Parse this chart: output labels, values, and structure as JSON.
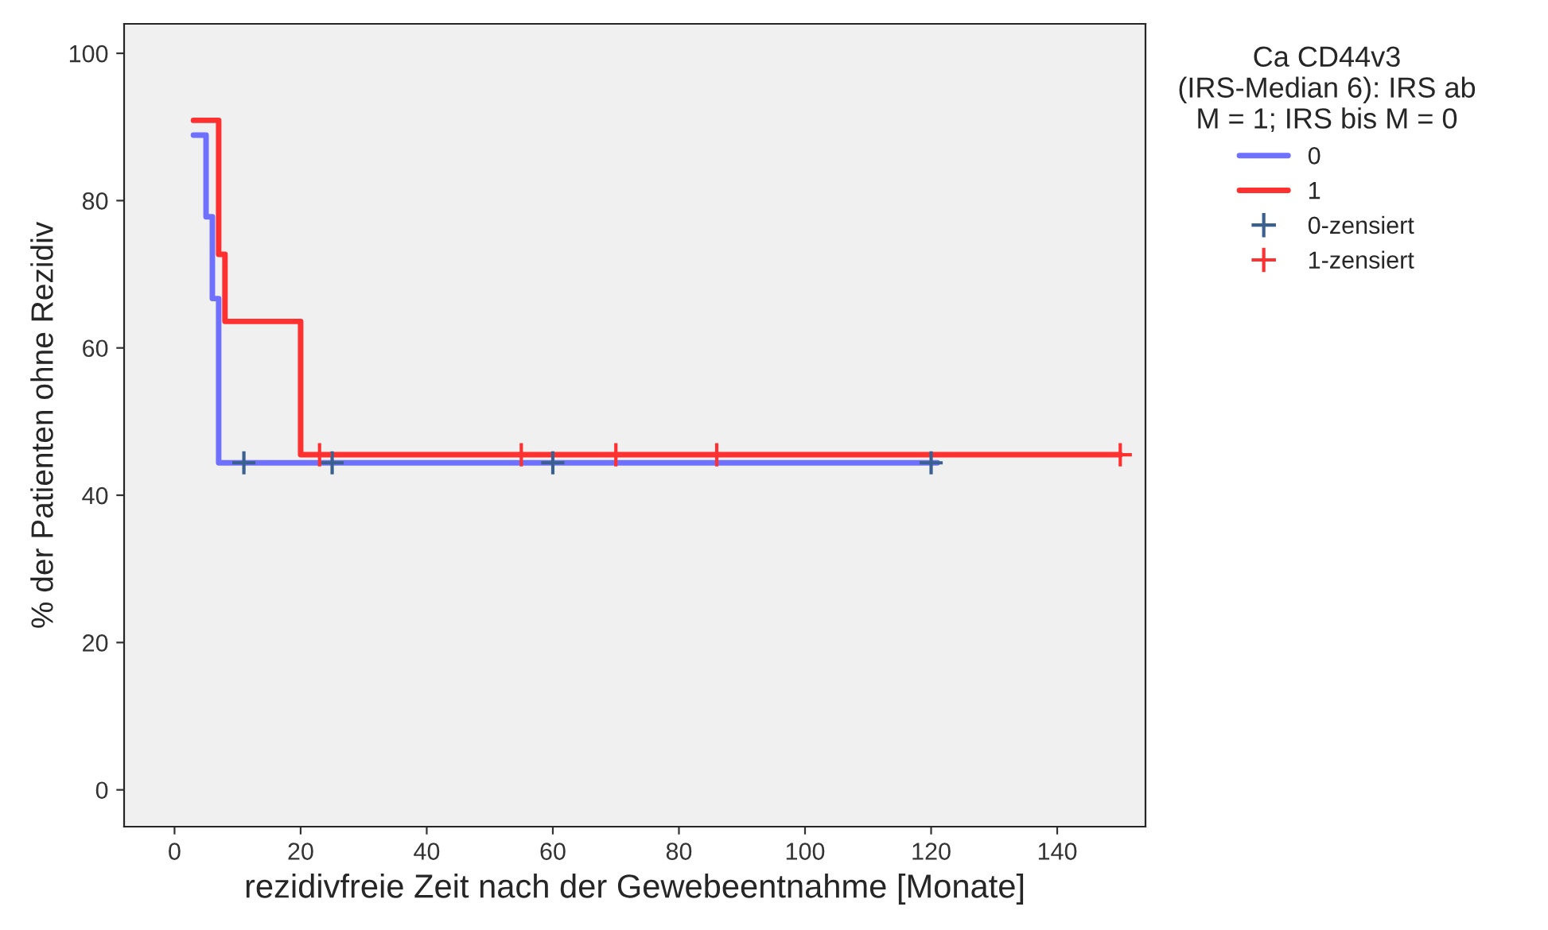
{
  "chart_data": {
    "type": "step",
    "xlabel": "rezidivfreie Zeit nach der Gewebeentnahme [Monate]",
    "ylabel": "% der Patienten ohne Rezidiv",
    "legend_title": "Ca CD44v3\n(IRS-Median 6): IRS ab\nM = 1; IRS bis M = 0",
    "series": [
      {
        "name": "0",
        "color": "#7070ff",
        "x": [
          3,
          5,
          6,
          7,
          121
        ],
        "values": [
          88.9,
          77.8,
          66.7,
          44.4,
          44.4
        ]
      },
      {
        "name": "1",
        "color": "#ff3030",
        "x": [
          3,
          7,
          8,
          20,
          150
        ],
        "values": [
          90.9,
          72.7,
          63.6,
          45.5,
          45.5
        ]
      },
      {
        "name": "0-zensiert",
        "type": "scatter",
        "marker": "cross",
        "color": "#3a6090",
        "x": [
          11,
          25,
          60,
          120
        ],
        "values": [
          44.4,
          44.4,
          44.4,
          44.4
        ]
      },
      {
        "name": "1-zensiert",
        "type": "scatter",
        "marker": "cross",
        "color": "#ff3030",
        "x": [
          23,
          55,
          70,
          86,
          150
        ],
        "values": [
          45.5,
          45.5,
          45.5,
          45.5,
          45.5
        ]
      }
    ],
    "xlim": [
      -8,
      154
    ],
    "ylim": [
      -5,
      104
    ],
    "xticks": [
      0,
      20,
      40,
      60,
      80,
      100,
      120,
      140
    ],
    "yticks": [
      0,
      20,
      40,
      60,
      80,
      100
    ],
    "grid": false,
    "legend": "right"
  }
}
